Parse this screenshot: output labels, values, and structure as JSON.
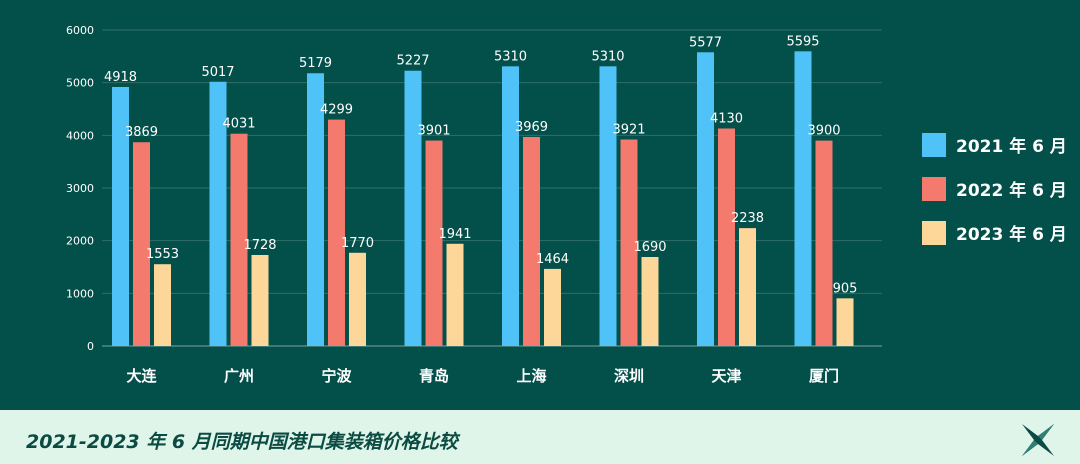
{
  "chart_data": {
    "type": "bar",
    "title": "2021-2023 年 6 月同期中国港口集装箱价格比较",
    "categories": [
      "大连",
      "广州",
      "宁波",
      "青岛",
      "上海",
      "深圳",
      "天津",
      "厦门"
    ],
    "series": [
      {
        "name": "2021 年 6 月",
        "color": "#4fc3f7",
        "values": [
          4918,
          5017,
          5179,
          5227,
          5310,
          5310,
          5577,
          5595
        ]
      },
      {
        "name": "2022 年 6 月",
        "color": "#f47a6e",
        "values": [
          3869,
          4031,
          4299,
          3901,
          3969,
          3921,
          4130,
          3900
        ]
      },
      {
        "name": "2023 年 6 月",
        "color": "#fdd79a",
        "values": [
          1553,
          1728,
          1770,
          1941,
          1464,
          1690,
          2238,
          905
        ]
      }
    ],
    "yticks": [
      0,
      1000,
      2000,
      3000,
      4000,
      5000,
      6000
    ],
    "ylim": [
      0,
      6000
    ],
    "grid": true,
    "legend": "right"
  },
  "colors": {
    "background": "#034f4a",
    "footer_background": "#dff5ea",
    "footer_text": "#0b4b43"
  },
  "footer": {
    "logo_icon": "x-star-logo-icon"
  }
}
